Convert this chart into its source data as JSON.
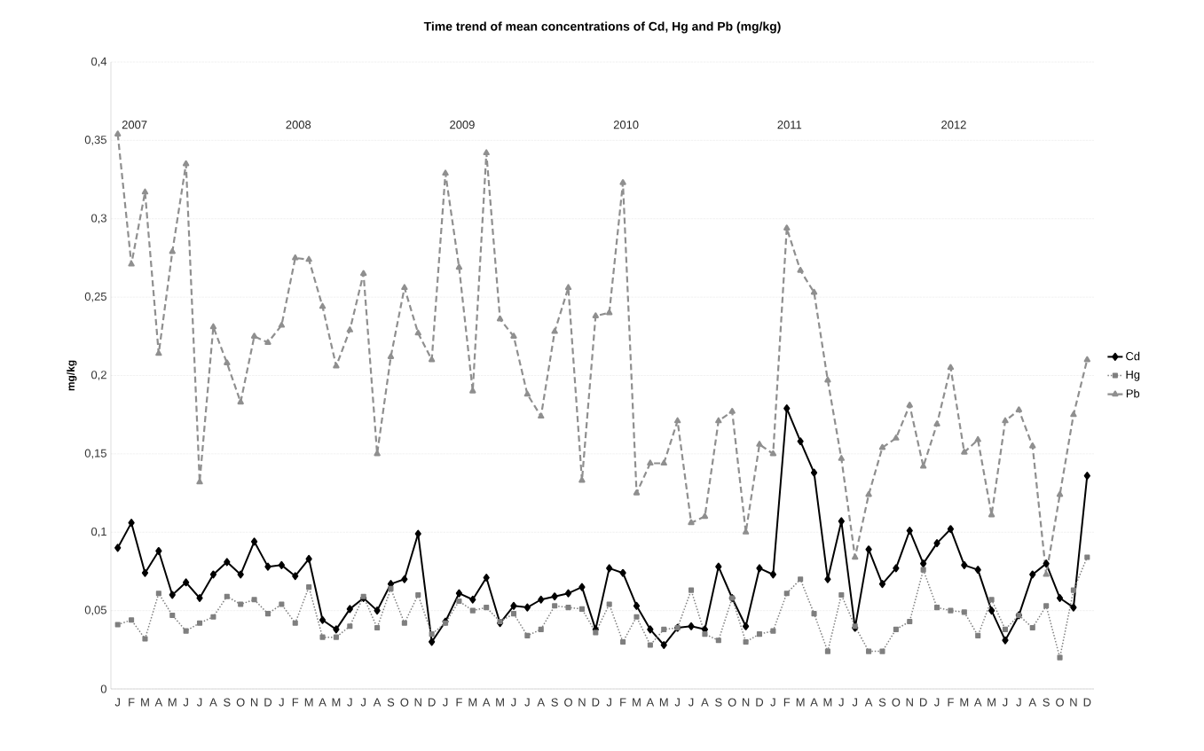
{
  "chart_data": {
    "type": "line",
    "title": "Time trend of mean concentrations of Cd, Hg and Pb (mg/kg)",
    "ylabel": "mg/kg",
    "categories": [
      "J",
      "F",
      "M",
      "A",
      "M",
      "J",
      "J",
      "A",
      "S",
      "O",
      "N",
      "D",
      "J",
      "F",
      "M",
      "A",
      "M",
      "J",
      "J",
      "A",
      "S",
      "O",
      "N",
      "D",
      "J",
      "F",
      "M",
      "A",
      "M",
      "J",
      "J",
      "A",
      "S",
      "O",
      "N",
      "D",
      "J",
      "F",
      "M",
      "A",
      "M",
      "J",
      "J",
      "A",
      "S",
      "O",
      "N",
      "D",
      "J",
      "F",
      "M",
      "A",
      "M",
      "J",
      "J",
      "A",
      "S",
      "O",
      "N",
      "D",
      "J",
      "F",
      "M",
      "A",
      "M",
      "J",
      "J",
      "A",
      "S",
      "O",
      "N",
      "D"
    ],
    "series": [
      {
        "name": "Cd",
        "color": "#000000",
        "marker": "diamond",
        "line_style": "solid",
        "values": [
          0.09,
          0.106,
          0.074,
          0.088,
          0.06,
          0.068,
          0.058,
          0.073,
          0.081,
          0.073,
          0.094,
          0.078,
          0.079,
          0.072,
          0.083,
          0.044,
          0.038,
          0.051,
          0.058,
          0.05,
          0.067,
          0.07,
          0.099,
          0.03,
          0.043,
          0.061,
          0.057,
          0.071,
          0.042,
          0.053,
          0.052,
          0.057,
          0.059,
          0.061,
          0.065,
          0.038,
          0.077,
          0.074,
          0.053,
          0.038,
          0.028,
          0.039,
          0.04,
          0.038,
          0.078,
          0.058,
          0.04,
          0.077,
          0.073,
          0.179,
          0.158,
          0.138,
          0.07,
          0.107,
          0.039,
          0.089,
          0.067,
          0.077,
          0.101,
          0.08,
          0.093,
          0.102,
          0.079,
          0.076,
          0.05,
          0.031,
          0.047,
          0.073,
          0.08,
          0.058,
          0.052,
          0.136
        ]
      },
      {
        "name": "Hg",
        "color": "#7f7f7f",
        "marker": "square",
        "line_style": "dotted",
        "values": [
          0.041,
          0.044,
          0.032,
          0.061,
          0.047,
          0.037,
          0.042,
          0.046,
          0.059,
          0.054,
          0.057,
          0.048,
          0.054,
          0.042,
          0.065,
          0.033,
          0.033,
          0.04,
          0.059,
          0.039,
          0.064,
          0.042,
          0.06,
          0.035,
          0.042,
          0.056,
          0.05,
          0.052,
          0.043,
          0.048,
          0.034,
          0.038,
          0.053,
          0.052,
          0.051,
          0.036,
          0.054,
          0.03,
          0.046,
          0.028,
          0.038,
          0.039,
          0.063,
          0.035,
          0.031,
          0.058,
          0.03,
          0.035,
          0.037,
          0.061,
          0.07,
          0.048,
          0.024,
          0.06,
          0.04,
          0.024,
          0.024,
          0.038,
          0.043,
          0.076,
          0.052,
          0.05,
          0.049,
          0.034,
          0.057,
          0.038,
          0.047,
          0.039,
          0.053,
          0.02,
          0.063,
          0.084
        ]
      },
      {
        "name": "Pb",
        "color": "#8f8f8f",
        "marker": "triangle",
        "line_style": "dashed",
        "values": [
          0.354,
          0.271,
          0.317,
          0.214,
          0.279,
          0.335,
          0.132,
          0.231,
          0.208,
          0.183,
          0.225,
          0.221,
          0.232,
          0.275,
          0.274,
          0.244,
          0.206,
          0.229,
          0.265,
          0.15,
          0.212,
          0.256,
          0.227,
          0.21,
          0.329,
          0.269,
          0.19,
          0.342,
          0.236,
          0.225,
          0.188,
          0.174,
          0.228,
          0.256,
          0.133,
          0.238,
          0.24,
          0.323,
          0.125,
          0.144,
          0.144,
          0.171,
          0.106,
          0.11,
          0.171,
          0.177,
          0.1,
          0.156,
          0.15,
          0.294,
          0.267,
          0.253,
          0.197,
          0.147,
          0.084,
          0.124,
          0.154,
          0.16,
          0.181,
          0.142,
          0.169,
          0.205,
          0.151,
          0.159,
          0.111,
          0.171,
          0.178,
          0.155,
          0.073,
          0.124,
          0.175,
          0.21
        ]
      }
    ],
    "ylim": [
      0,
      0.4
    ],
    "yticks": [
      0,
      {
        "value": 0.05,
        "label": "0,05"
      },
      {
        "value": 0.1,
        "label": "0,1"
      },
      {
        "value": 0.15,
        "label": "0,15"
      },
      {
        "value": 0.2,
        "label": "0,2"
      },
      {
        "value": 0.25,
        "label": "0,25"
      },
      {
        "value": 0.3,
        "label": "0,3"
      },
      {
        "value": 0.35,
        "label": "0,35"
      },
      {
        "value": 0.4,
        "label": "0,4"
      }
    ],
    "grid": "y",
    "legend": "right",
    "annotations": [
      "2007",
      "2008",
      "2009",
      "2010",
      "2011",
      "2012"
    ]
  }
}
